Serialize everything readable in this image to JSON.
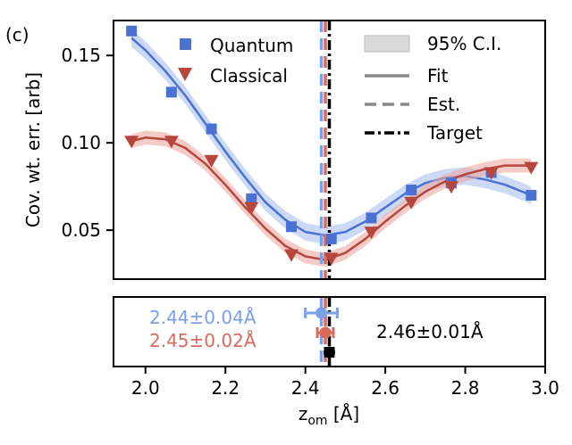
{
  "panel_label": "(c)",
  "colors": {
    "quantum": "#4a72d4",
    "quantum_band": "#aac1f0",
    "quantum_text": "#7aa0e8",
    "classical": "#b5473c",
    "classical_band": "#eca8a2",
    "classical_text": "#d96a5e",
    "target": "#000000",
    "fit_legend": "#888888",
    "ci_fill": "#d9d9d9"
  },
  "chart_data": [
    {
      "type": "scatter",
      "ylabel": "Cov. wt. err. [arb]",
      "xlim": [
        1.92,
        3.0
      ],
      "ylim": [
        0.022,
        0.17
      ],
      "yticks": [
        0.05,
        0.1,
        0.15
      ],
      "ytick_labels": [
        "0.05",
        "0.10",
        "0.15"
      ],
      "legend": {
        "left": [
          "Quantum",
          "Classical"
        ],
        "right": [
          "95% C.I.",
          "Fit",
          "Est.",
          "Target"
        ]
      },
      "series": [
        {
          "name": "Quantum",
          "marker": "square",
          "x": [
            1.965,
            2.065,
            2.165,
            2.265,
            2.365,
            2.465,
            2.565,
            2.665,
            2.765,
            2.865,
            2.965
          ],
          "y": [
            0.164,
            0.129,
            0.108,
            0.068,
            0.052,
            0.045,
            0.057,
            0.073,
            0.077,
            0.083,
            0.07
          ]
        },
        {
          "name": "Classical",
          "marker": "triangle-down",
          "x": [
            1.965,
            2.065,
            2.165,
            2.265,
            2.365,
            2.465,
            2.565,
            2.665,
            2.765,
            2.865,
            2.965
          ],
          "y": [
            0.101,
            0.101,
            0.09,
            0.063,
            0.036,
            0.034,
            0.049,
            0.066,
            0.075,
            0.083,
            0.086
          ]
        }
      ],
      "fits": [
        {
          "x": [
            1.965,
            2.0,
            2.05,
            2.1,
            2.15,
            2.2,
            2.25,
            2.3,
            2.35,
            2.4,
            2.45,
            2.5,
            2.55,
            2.6,
            2.65,
            2.7,
            2.75,
            2.8,
            2.85,
            2.9,
            2.965
          ],
          "y": [
            0.16,
            0.153,
            0.141,
            0.127,
            0.111,
            0.095,
            0.08,
            0.066,
            0.056,
            0.049,
            0.047,
            0.049,
            0.055,
            0.063,
            0.071,
            0.077,
            0.08,
            0.081,
            0.079,
            0.076,
            0.07
          ],
          "band": 0.005
        },
        {
          "x": [
            1.965,
            2.0,
            2.05,
            2.1,
            2.15,
            2.2,
            2.25,
            2.3,
            2.35,
            2.4,
            2.45,
            2.5,
            2.55,
            2.6,
            2.65,
            2.7,
            2.75,
            2.8,
            2.85,
            2.9,
            2.965
          ],
          "y": [
            0.101,
            0.103,
            0.102,
            0.097,
            0.088,
            0.076,
            0.063,
            0.051,
            0.041,
            0.035,
            0.033,
            0.037,
            0.045,
            0.055,
            0.064,
            0.072,
            0.078,
            0.082,
            0.085,
            0.087,
            0.087
          ],
          "band": 0.004
        }
      ],
      "vlines": [
        {
          "name": "Est. Quantum",
          "x": 2.44,
          "style": "dashed"
        },
        {
          "name": "Est. Classical",
          "x": 2.45,
          "style": "dashed"
        },
        {
          "name": "Target",
          "x": 2.46,
          "style": "dashdot"
        }
      ]
    },
    {
      "type": "scatter",
      "xlabel_main": "z",
      "xlabel_sub": "om",
      "xlabel_unit": " [Å]",
      "xlim": [
        1.92,
        3.0
      ],
      "xticks": [
        2.0,
        2.2,
        2.4,
        2.6,
        2.8,
        3.0
      ],
      "xtick_labels": [
        "2.0",
        "2.2",
        "2.4",
        "2.6",
        "2.8",
        "3.0"
      ],
      "estimates": [
        {
          "name": "Quantum",
          "x": 2.44,
          "err": 0.04,
          "label": "2.44±0.04Å"
        },
        {
          "name": "Classical",
          "x": 2.45,
          "err": 0.02,
          "label": "2.45±0.02Å"
        },
        {
          "name": "Target",
          "x": 2.46,
          "err": 0.01,
          "label": "2.46±0.01Å"
        }
      ]
    }
  ]
}
